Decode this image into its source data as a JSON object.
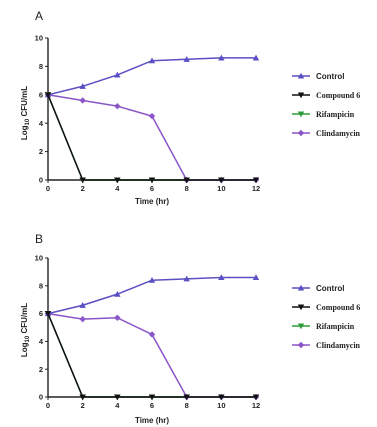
{
  "chart_data": [
    {
      "type": "line",
      "panel": "A",
      "x": [
        0,
        2,
        4,
        6,
        8,
        10,
        12
      ],
      "xlabel": "Time (hr)",
      "ylabel": "Log10 CFU/mL",
      "xlim": [
        0,
        12
      ],
      "ylim": [
        0,
        10
      ],
      "xticks": [
        0,
        2,
        4,
        6,
        8,
        10,
        12
      ],
      "yticks": [
        0,
        2,
        4,
        6,
        8,
        10
      ],
      "legend_position": "right",
      "series": [
        {
          "name": "Control",
          "color": "#5b4fc4",
          "marker": "triangle-up",
          "x": [
            0,
            2,
            4,
            6,
            8,
            10,
            12
          ],
          "y": [
            6,
            6.6,
            7.4,
            8.4,
            8.5,
            8.6,
            8.6
          ]
        },
        {
          "name": "Compound 6",
          "color": "#111111",
          "marker": "triangle-down",
          "x": [
            0,
            2,
            4,
            6,
            8,
            10,
            12
          ],
          "y": [
            6,
            0,
            0,
            0,
            0,
            0,
            0
          ]
        },
        {
          "name": "Rifampicin",
          "color": "#2e9b3a",
          "marker": "triangle-down",
          "x": [
            0,
            2,
            4,
            6,
            8,
            10,
            12
          ],
          "y": [
            6,
            0,
            0,
            0,
            0,
            0,
            0
          ]
        },
        {
          "name": "Clindamycin",
          "color": "#8b55c9",
          "marker": "diamond",
          "x": [
            0,
            2,
            4,
            6,
            8,
            10,
            12
          ],
          "y": [
            6,
            5.6,
            5.2,
            4.5,
            0,
            0,
            0
          ]
        }
      ]
    },
    {
      "type": "line",
      "panel": "B",
      "x": [
        0,
        2,
        4,
        6,
        8,
        10,
        12
      ],
      "xlabel": "Time (hr)",
      "ylabel": "Log10 CFU/mL",
      "xlim": [
        0,
        12
      ],
      "ylim": [
        0,
        10
      ],
      "xticks": [
        0,
        2,
        4,
        6,
        8,
        10,
        12
      ],
      "yticks": [
        0,
        2,
        4,
        6,
        8,
        10
      ],
      "legend_position": "right",
      "series": [
        {
          "name": "Control",
          "color": "#5b4fc4",
          "marker": "triangle-up",
          "x": [
            0,
            2,
            4,
            6,
            8,
            10,
            12
          ],
          "y": [
            6,
            6.6,
            7.4,
            8.4,
            8.5,
            8.6,
            8.6
          ]
        },
        {
          "name": "Compound 6",
          "color": "#111111",
          "marker": "triangle-down",
          "x": [
            0,
            2,
            4,
            6,
            8,
            10,
            12
          ],
          "y": [
            6,
            0,
            0,
            0,
            0,
            0,
            0
          ]
        },
        {
          "name": "Rifampicin",
          "color": "#2e9b3a",
          "marker": "triangle-down",
          "x": [
            0,
            2,
            4,
            6,
            8,
            10,
            12
          ],
          "y": [
            6,
            0,
            0,
            0,
            0,
            0,
            0
          ]
        },
        {
          "name": "Clindamycin",
          "color": "#8b55c9",
          "marker": "diamond",
          "x": [
            0,
            2,
            4,
            6,
            8,
            10,
            12
          ],
          "y": [
            6,
            5.6,
            5.7,
            4.5,
            0,
            0,
            0
          ]
        }
      ]
    }
  ],
  "panels": {
    "a": {
      "label": "A",
      "legend": [
        "Control",
        "Compound 6",
        "Rifampicin",
        "Clindamycin"
      ]
    },
    "b": {
      "label": "B",
      "legend": [
        "Control",
        "Compound 6",
        "Rifampicin",
        "Clindamycin"
      ]
    }
  },
  "axes": {
    "ylabel_prefix": "Log",
    "ylabel_sub": "10",
    "ylabel_suffix": " CFU/mL",
    "xlabel": "Time (hr)"
  }
}
